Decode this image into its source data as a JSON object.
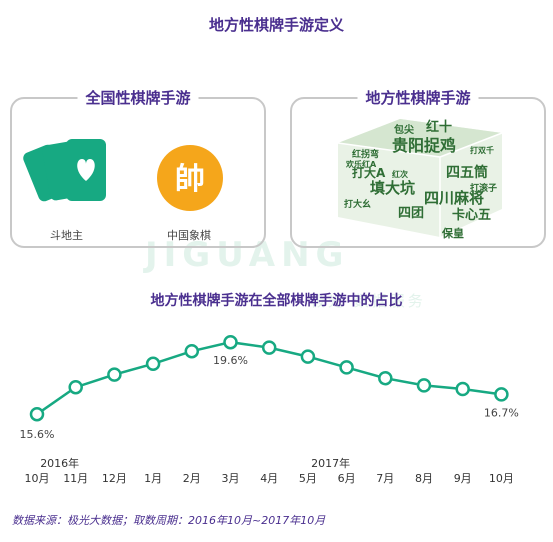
{
  "page_title": "地方性棋牌手游定义",
  "panels": {
    "national": {
      "label": "全国性棋牌手游",
      "games": [
        "斗地主",
        "中国象棋"
      ],
      "chess_glyph": "帥",
      "icons": [
        "playing-cards-icon",
        "chinese-chess-piece-icon"
      ]
    },
    "local": {
      "label": "地方性棋牌手游",
      "word_cloud": [
        "贵阳捉鸡",
        "四川麻将",
        "填大坑",
        "四五筒",
        "卡心五",
        "打大A",
        "四团",
        "红十",
        "红拐弯",
        "欢乐红A",
        "保皇",
        "打滚子",
        "包尖",
        "红次",
        "打大幺",
        "打双千"
      ]
    }
  },
  "watermark": {
    "text": "JIGUANG",
    "sub": "极光 数据服务"
  },
  "colors": {
    "accent": "#17a982",
    "title": "#4a2f8f",
    "chess": "#f5a61b",
    "cloud": "#2f6e35"
  },
  "chart_data": {
    "type": "line",
    "title": "地方性棋牌手游在全部棋牌手游中的占比",
    "categories": [
      "10月",
      "11月",
      "12月",
      "1月",
      "2月",
      "3月",
      "4月",
      "5月",
      "6月",
      "7月",
      "8月",
      "9月",
      "10月"
    ],
    "year_labels": [
      {
        "label": "2016年",
        "index": 1
      },
      {
        "label": "2017年",
        "index": 8
      }
    ],
    "values": [
      15.6,
      17.1,
      17.8,
      18.4,
      19.1,
      19.6,
      19.3,
      18.8,
      18.2,
      17.6,
      17.2,
      17.0,
      16.7
    ],
    "value_labels": [
      {
        "index": 0,
        "text": "15.6%"
      },
      {
        "index": 5,
        "text": "19.6%"
      },
      {
        "index": 12,
        "text": "16.7%"
      }
    ],
    "xlabel": "",
    "ylabel": "",
    "ylim": [
      15,
      20
    ],
    "grid": false,
    "legend": "none"
  },
  "source": "数据来源：极光大数据；取数周期：2016年10月~2017年10月"
}
